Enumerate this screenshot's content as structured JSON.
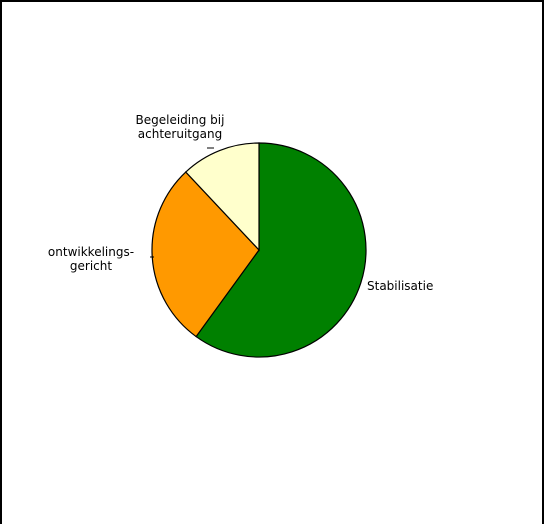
{
  "chart_data": {
    "type": "pie",
    "title": "",
    "slices": [
      {
        "label_lines": [
          "Stabilisatie"
        ],
        "value": 60,
        "color": "#008000"
      },
      {
        "label_lines": [
          "ontwikkelings-",
          "gericht"
        ],
        "value": 28,
        "color": "#FF9900"
      },
      {
        "label_lines": [
          "Begeleiding bij",
          "achteruitgang"
        ],
        "value": 12,
        "color": "#FFFFCC"
      }
    ],
    "legend": "none",
    "slice_border_color": "#000000"
  }
}
